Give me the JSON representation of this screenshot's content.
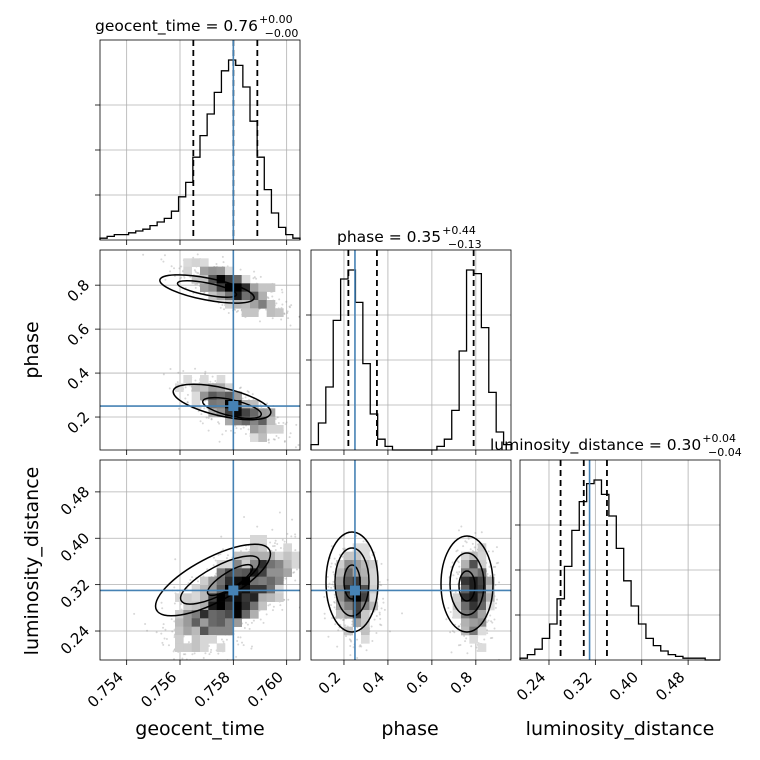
{
  "chart_data": {
    "type": "corner",
    "parameters": [
      "geocent_time",
      "phase",
      "luminosity_distance"
    ],
    "titles": [
      {
        "param": "geocent_time",
        "text": "geocent_time = 0.76",
        "plus": "+0.00",
        "minus": "−0.00"
      },
      {
        "param": "phase",
        "text": "phase = 0.35",
        "plus": "+0.44",
        "minus": "−0.13"
      },
      {
        "param": "luminosity_distance",
        "text": "luminosity_distance = 0.30",
        "plus": "+0.04",
        "minus": "−0.04"
      }
    ],
    "axis_labels": {
      "x": [
        "geocent_time",
        "phase",
        "luminosity_distance"
      ],
      "y": [
        "phase",
        "luminosity_distance"
      ]
    },
    "ranges": {
      "geocent_time": [
        0.753,
        0.7605
      ],
      "phase": [
        0.05,
        0.96
      ],
      "luminosity_distance": [
        0.19,
        0.535
      ]
    },
    "ticks": {
      "geocent_time": [
        0.754,
        0.756,
        0.758,
        0.76
      ],
      "phase": [
        0.2,
        0.4,
        0.6,
        0.8
      ],
      "luminosity_distance": [
        0.24,
        0.32,
        0.4,
        0.48
      ]
    },
    "tick_labels": {
      "geocent_time": [
        "0.754",
        "0.756",
        "0.758",
        "0.760"
      ],
      "phase": [
        "0.2",
        "0.4",
        "0.6",
        "0.8"
      ],
      "luminosity_distance": [
        "0.24",
        "0.32",
        "0.40",
        "0.48"
      ]
    },
    "truths": {
      "geocent_time": 0.758,
      "phase": 0.25,
      "luminosity_distance": 0.31
    },
    "quantiles": {
      "geocent_time": [
        0.7565,
        0.758,
        0.7589
      ],
      "phase": [
        0.22,
        0.35,
        0.79
      ],
      "luminosity_distance": [
        0.26,
        0.3,
        0.34
      ]
    },
    "histograms": {
      "geocent_time": [
        1,
        2,
        3,
        3,
        4,
        5,
        6,
        8,
        10,
        12,
        16,
        24,
        32,
        46,
        58,
        70,
        82,
        94,
        100,
        97,
        85,
        66,
        46,
        28,
        15,
        7,
        3,
        1
      ],
      "phase": [
        3,
        15,
        35,
        72,
        95,
        100,
        82,
        48,
        20,
        6,
        2,
        0,
        0,
        0,
        0,
        0,
        0,
        2,
        6,
        22,
        55,
        100,
        98,
        68,
        32,
        10,
        3
      ],
      "luminosity_distance": [
        1,
        3,
        6,
        12,
        20,
        34,
        52,
        72,
        88,
        98,
        100,
        92,
        80,
        62,
        44,
        30,
        20,
        12,
        8,
        5,
        3,
        2,
        1,
        1,
        1,
        0,
        0
      ]
    },
    "grid": true
  }
}
